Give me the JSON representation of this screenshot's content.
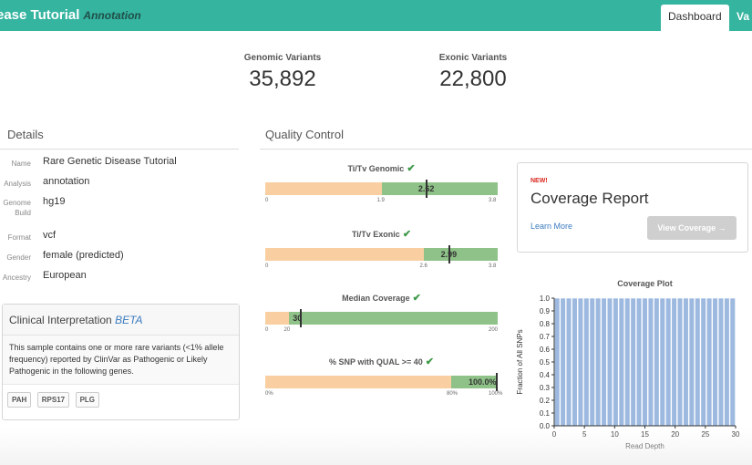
{
  "header": {
    "brand": "ease Tutorial",
    "brand_sub": "Annotation",
    "tabs": [
      {
        "label": "Dashboard",
        "active": true
      },
      {
        "label": "Va",
        "active": false
      }
    ],
    "colors": {
      "bar": "#35b4a0"
    }
  },
  "stats": [
    {
      "label": "Genomic Variants",
      "value": "35,892"
    },
    {
      "label": "Exonic Variants",
      "value": "22,800"
    }
  ],
  "details": {
    "title": "Details",
    "rows": [
      {
        "key": "Name",
        "value": "Rare Genetic Disease Tutorial"
      },
      {
        "key": "Analysis",
        "value": "annotation"
      },
      {
        "key": "Genome Build",
        "value": "hg19"
      },
      {
        "key": "Format",
        "value": "vcf"
      },
      {
        "key": "Gender",
        "value": "female (predicted)"
      },
      {
        "key": "Ancestry",
        "value": "European"
      }
    ]
  },
  "clinical": {
    "title": "Clinical Interpretation",
    "title_badge": "BETA",
    "body": "This sample contains one or more rare variants (<1% allele frequency) reported by ClinVar as Pathogenic or Likely Pathogenic in the following genes.",
    "genes": [
      "PAH",
      "RPS17",
      "PLG"
    ]
  },
  "quality": {
    "title": "Quality Control",
    "check_icon": "check-icon",
    "gauges": [
      {
        "title": "Ti/Tv Genomic",
        "min": 0,
        "max": 3.8,
        "threshold": 1.9,
        "value": 2.62,
        "value_label": "2.62",
        "tick_labels": [
          "0",
          "1.9",
          "3.8"
        ]
      },
      {
        "title": "Ti/Tv Exonic",
        "min": 0,
        "max": 3.8,
        "threshold": 2.6,
        "value": 2.99,
        "value_label": "2.99",
        "tick_labels": [
          "0",
          "2.6",
          "3.8"
        ]
      },
      {
        "title": "Median Coverage",
        "min": 0,
        "max": 200,
        "threshold": 20,
        "value": 30,
        "value_label": "30",
        "tick_labels": [
          "0",
          "20",
          "200"
        ]
      },
      {
        "title": "% SNP with QUAL >= 40",
        "min": 0,
        "max": 100,
        "threshold": 80,
        "value": 100,
        "value_label": "100.0%",
        "tick_labels": [
          "0%",
          "80%",
          "100%"
        ]
      }
    ]
  },
  "coverage_report": {
    "badge": "NEW!",
    "title": "Coverage Report",
    "learn_more": "Learn More",
    "button": "View Coverage →"
  },
  "chart_data": {
    "type": "bar",
    "title": "Coverage Plot",
    "xlabel": "Read Depth",
    "ylabel": "Fraction of All SNPs",
    "x": [
      0,
      1,
      2,
      3,
      4,
      5,
      6,
      7,
      8,
      9,
      10,
      11,
      12,
      13,
      14,
      15,
      16,
      17,
      18,
      19,
      20,
      21,
      22,
      23,
      24,
      25,
      26,
      27,
      28,
      29,
      30
    ],
    "values": [
      1.0,
      1.0,
      1.0,
      1.0,
      1.0,
      1.0,
      1.0,
      1.0,
      1.0,
      1.0,
      1.0,
      1.0,
      1.0,
      1.0,
      1.0,
      1.0,
      1.0,
      1.0,
      1.0,
      1.0,
      1.0,
      1.0,
      1.0,
      1.0,
      1.0,
      1.0,
      1.0,
      1.0,
      1.0,
      1.0,
      1.0
    ],
    "xlim": [
      0,
      30
    ],
    "ylim": [
      0,
      1.0
    ],
    "xticks": [
      "0",
      "5",
      "10",
      "15",
      "20",
      "25",
      "30"
    ],
    "yticks": [
      "0.0",
      "0.1",
      "0.2",
      "0.3",
      "0.4",
      "0.5",
      "0.6",
      "0.7",
      "0.8",
      "0.9",
      "1.0"
    ],
    "bar_color": "#9db9e0",
    "grid": false
  }
}
